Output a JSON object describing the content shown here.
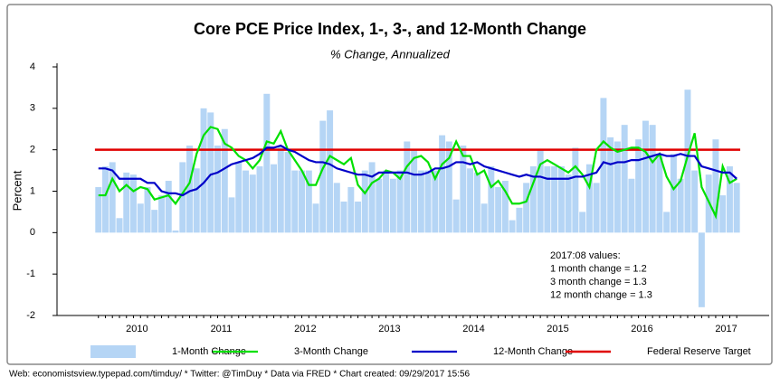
{
  "chart_data": {
    "type": "bar-line",
    "title": "Core PCE Price Index, 1-, 3-, and 12-Month Change",
    "subtitle": "% Change, Annualized",
    "ylabel": "Percent",
    "x": [
      2010.042,
      2010.125,
      2010.208,
      2010.292,
      2010.375,
      2010.458,
      2010.542,
      2010.625,
      2010.708,
      2010.792,
      2010.875,
      2010.958,
      2011.042,
      2011.125,
      2011.208,
      2011.292,
      2011.375,
      2011.458,
      2011.542,
      2011.625,
      2011.708,
      2011.792,
      2011.875,
      2011.958,
      2012.042,
      2012.125,
      2012.208,
      2012.292,
      2012.375,
      2012.458,
      2012.542,
      2012.625,
      2012.708,
      2012.792,
      2012.875,
      2012.958,
      2013.042,
      2013.125,
      2013.208,
      2013.292,
      2013.375,
      2013.458,
      2013.542,
      2013.625,
      2013.708,
      2013.792,
      2013.875,
      2013.958,
      2014.042,
      2014.125,
      2014.208,
      2014.292,
      2014.375,
      2014.458,
      2014.542,
      2014.625,
      2014.708,
      2014.792,
      2014.875,
      2014.958,
      2015.042,
      2015.125,
      2015.208,
      2015.292,
      2015.375,
      2015.458,
      2015.542,
      2015.625,
      2015.708,
      2015.792,
      2015.875,
      2015.958,
      2016.042,
      2016.125,
      2016.208,
      2016.292,
      2016.375,
      2016.458,
      2016.542,
      2016.625,
      2016.708,
      2016.792,
      2016.875,
      2016.958,
      2017.042,
      2017.125,
      2017.208,
      2017.292,
      2017.375,
      2017.458,
      2017.542,
      2017.625
    ],
    "series": [
      {
        "name": "1-Month Change",
        "kind": "bar",
        "color": "#b5d5f5",
        "values": [
          1.1,
          1.6,
          1.7,
          0.35,
          1.45,
          1.4,
          0.7,
          1.1,
          0.55,
          0.9,
          1.25,
          0.05,
          1.7,
          2.1,
          1.55,
          3.0,
          2.9,
          2.1,
          2.5,
          0.85,
          1.7,
          1.5,
          1.4,
          1.6,
          3.35,
          1.65,
          2.1,
          1.95,
          1.5,
          1.5,
          1.5,
          0.7,
          2.7,
          2.95,
          1.2,
          0.75,
          1.1,
          0.75,
          1.5,
          1.7,
          1.3,
          1.5,
          1.3,
          1.5,
          2.2,
          2.0,
          1.5,
          1.5,
          1.5,
          2.35,
          2.2,
          0.8,
          2.1,
          1.55,
          1.45,
          0.7,
          1.6,
          1.1,
          1.25,
          0.3,
          0.6,
          1.2,
          1.6,
          2.0,
          1.6,
          1.6,
          1.6,
          1.4,
          2.05,
          0.5,
          1.65,
          1.2,
          3.25,
          2.3,
          2.2,
          2.6,
          1.3,
          2.25,
          2.7,
          2.6,
          1.9,
          0.5,
          1.9,
          1.3,
          3.45,
          1.5,
          -1.8,
          1.4,
          2.25,
          0.9,
          1.6,
          1.2
        ]
      },
      {
        "name": "3-Month Change",
        "kind": "line",
        "color": "#00e000",
        "values": [
          0.9,
          0.9,
          1.3,
          1.0,
          1.15,
          1.0,
          1.1,
          1.05,
          0.8,
          0.85,
          0.9,
          0.7,
          0.95,
          1.2,
          1.9,
          2.35,
          2.55,
          2.5,
          2.15,
          2.05,
          1.85,
          1.75,
          1.55,
          1.75,
          2.2,
          2.15,
          2.45,
          2.0,
          1.75,
          1.5,
          1.15,
          1.15,
          1.55,
          1.85,
          1.75,
          1.65,
          1.8,
          1.15,
          0.95,
          1.2,
          1.3,
          1.5,
          1.45,
          1.3,
          1.6,
          1.8,
          1.85,
          1.7,
          1.3,
          1.65,
          1.8,
          2.2,
          1.85,
          1.85,
          1.4,
          1.5,
          1.1,
          1.25,
          1.0,
          0.7,
          0.7,
          0.75,
          1.2,
          1.65,
          1.75,
          1.65,
          1.55,
          1.45,
          1.6,
          1.4,
          1.1,
          2.0,
          2.2,
          2.05,
          1.95,
          2.0,
          2.05,
          2.05,
          1.95,
          1.7,
          1.9,
          1.35,
          1.05,
          1.25,
          1.85,
          2.4,
          1.1,
          0.75,
          0.4,
          1.6,
          1.2,
          1.3
        ]
      },
      {
        "name": "12-Month Change",
        "kind": "line",
        "color": "#0000c8",
        "values": [
          1.55,
          1.55,
          1.5,
          1.3,
          1.3,
          1.3,
          1.3,
          1.2,
          1.2,
          1.0,
          0.95,
          0.95,
          0.9,
          1.0,
          1.05,
          1.2,
          1.4,
          1.45,
          1.55,
          1.65,
          1.7,
          1.75,
          1.8,
          1.9,
          2.05,
          2.05,
          2.1,
          2.0,
          1.95,
          1.85,
          1.75,
          1.7,
          1.7,
          1.65,
          1.55,
          1.5,
          1.45,
          1.4,
          1.4,
          1.35,
          1.45,
          1.45,
          1.45,
          1.45,
          1.45,
          1.4,
          1.4,
          1.45,
          1.55,
          1.55,
          1.6,
          1.7,
          1.7,
          1.65,
          1.7,
          1.6,
          1.55,
          1.5,
          1.45,
          1.4,
          1.35,
          1.4,
          1.35,
          1.35,
          1.3,
          1.3,
          1.3,
          1.3,
          1.35,
          1.35,
          1.4,
          1.45,
          1.7,
          1.65,
          1.7,
          1.7,
          1.75,
          1.75,
          1.8,
          1.85,
          1.9,
          1.85,
          1.85,
          1.9,
          1.85,
          1.85,
          1.6,
          1.55,
          1.5,
          1.45,
          1.45,
          1.3
        ]
      }
    ],
    "target": {
      "name": "Federal Reserve Target",
      "color": "#e00000",
      "value": 2
    },
    "xlim": [
      2009.55,
      2018.01
    ],
    "xticks": [
      {
        "value": 2010.5,
        "label": "2010"
      },
      {
        "value": 2011.5,
        "label": "2011"
      },
      {
        "value": 2012.5,
        "label": "2012"
      },
      {
        "value": 2013.5,
        "label": "2013"
      },
      {
        "value": 2014.5,
        "label": "2014"
      },
      {
        "value": 2015.5,
        "label": "2015"
      },
      {
        "value": 2016.5,
        "label": "2016"
      },
      {
        "value": 2017.5,
        "label": "2017"
      }
    ],
    "ylim": [
      -2,
      4
    ],
    "yticks": [
      -2,
      -1,
      0,
      1,
      2,
      3,
      4
    ],
    "legend": "bottom",
    "annotation": [
      "2017:08  values:",
      "1 month change =   1.2",
      "3 month change =    1.3",
      "12 month change =   1.3"
    ],
    "footer": "Web: economistsview.typepad.com/timduy/ * Twitter: @TimDuy * Data via FRED * Chart created: 09/29/2017 15:56"
  }
}
